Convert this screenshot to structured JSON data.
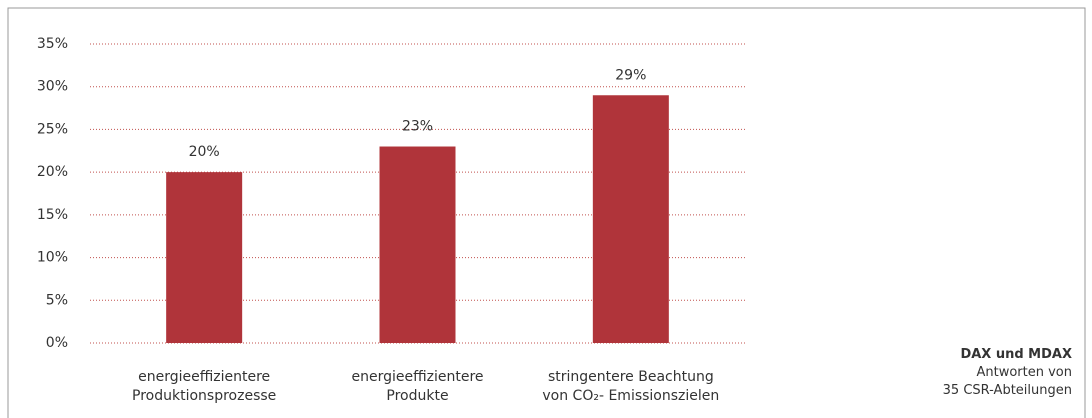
{
  "chart_data": {
    "type": "bar",
    "categories": [
      "energieeffizientere\nProduktionsprozesse",
      "energieeffizientere\nProdukte",
      "stringentere Beachtung\nvon CO₂- Emissionszielen"
    ],
    "values": [
      20,
      23,
      29
    ],
    "value_labels": [
      "20%",
      "23%",
      "29%"
    ],
    "color": "#b0343a",
    "ylim": [
      0,
      35
    ],
    "yticks": [
      {
        "value": 0,
        "label": "0%"
      },
      {
        "value": 5,
        "label": "5%"
      },
      {
        "value": 10,
        "label": "10%"
      },
      {
        "value": 15,
        "label": "15%"
      },
      {
        "value": 20,
        "label": "20%"
      },
      {
        "value": 25,
        "label": "25%"
      },
      {
        "value": 30,
        "label": "30%"
      },
      {
        "value": 35,
        "label": "35%"
      }
    ],
    "grid": true,
    "note": {
      "title": "DAX und MDAX",
      "text": "Antworten von\n35 CSR-Abteilungen"
    }
  }
}
